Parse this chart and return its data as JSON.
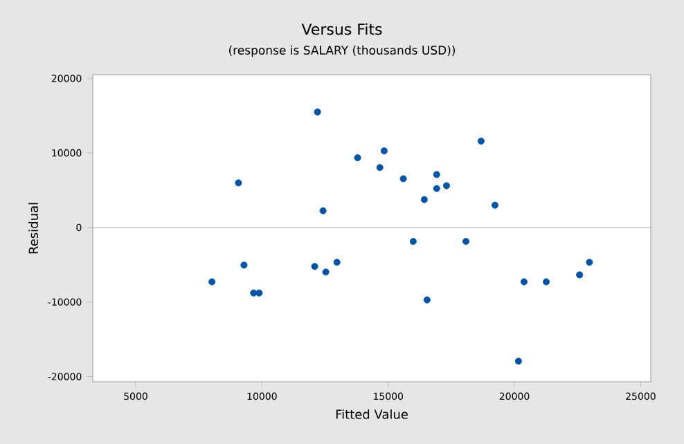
{
  "chart_data": {
    "type": "scatter",
    "title": "Versus Fits",
    "subtitle": "(response is SALARY (thousands USD))",
    "xlabel": "Fitted Value",
    "ylabel": "Residual",
    "xlim": [
      3300,
      25400
    ],
    "ylim": [
      -20700,
      20500
    ],
    "xticks": [
      5000,
      10000,
      15000,
      20000,
      25000
    ],
    "yticks": [
      -20000,
      -10000,
      0,
      10000,
      20000
    ],
    "x": [
      8020,
      9070,
      9290,
      9670,
      9890,
      12200,
      12090,
      12420,
      12530,
      12970,
      13790,
      14670,
      14840,
      15600,
      16430,
      16540,
      15990,
      16920,
      16920,
      17310,
      18080,
      18680,
      19230,
      20380,
      20160,
      21260,
      22580,
      22970
    ],
    "values": [
      -7290,
      5980,
      -5050,
      -8790,
      -8790,
      15500,
      -5230,
      2240,
      -5980,
      -4670,
      9350,
      8040,
      10280,
      6540,
      3740,
      -9720,
      -1870,
      7100,
      5230,
      5600,
      -1870,
      11590,
      2990,
      -7290,
      -17940,
      -7290,
      -6360,
      -4670
    ],
    "color": "#0054a6",
    "marker": "circle",
    "ref_lines": [
      {
        "axis": "y",
        "value": 0,
        "color": "#999999"
      }
    ]
  }
}
